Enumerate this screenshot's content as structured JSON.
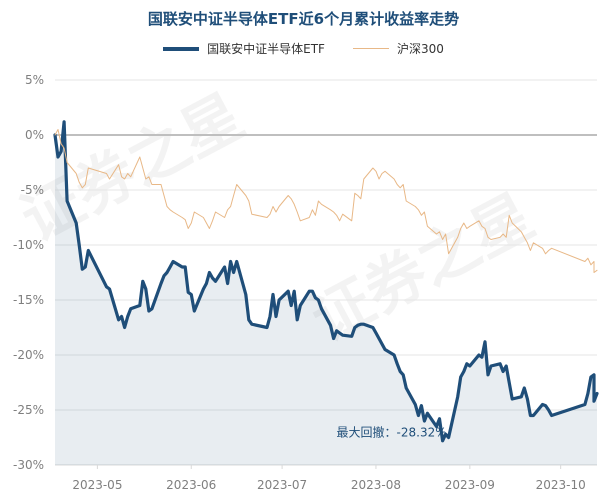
{
  "watermark": "证券之星",
  "chart_data": {
    "type": "line",
    "title": "国联安中证半导体ETF近6个月累计收益率走势",
    "xlabel": "",
    "ylabel": "",
    "ylim": [
      -30,
      5
    ],
    "yticks": [
      5,
      0,
      -5,
      -10,
      -15,
      -20,
      -25,
      -30
    ],
    "ytick_labels": [
      "5%",
      "0%",
      "-5%",
      "-10%",
      "-15%",
      "-20%",
      "-25%",
      "-30%"
    ],
    "x_domain": [
      "2023-04-17",
      "2023-10-13"
    ],
    "xticks": [
      "2023-05-01",
      "2023-06-01",
      "2023-07-01",
      "2023-08-01",
      "2023-09-01",
      "2023-10-01"
    ],
    "xtick_labels": [
      "2023-05",
      "2023-06",
      "2023-07",
      "2023-08",
      "2023-09",
      "2023-10"
    ],
    "grid": true,
    "legend": "top-center",
    "series": [
      {
        "name": "国联安中证半导体ETF",
        "color": "#1f4e79",
        "style": "thick-area",
        "points": [
          [
            "2023-04-17",
            0.0
          ],
          [
            "2023-04-18",
            -2.0
          ],
          [
            "2023-04-19",
            -1.5
          ],
          [
            "2023-04-20",
            1.2
          ],
          [
            "2023-04-21",
            -6.0
          ],
          [
            "2023-04-24",
            -8.0
          ],
          [
            "2023-04-25",
            -10.0
          ],
          [
            "2023-04-26",
            -12.2
          ],
          [
            "2023-04-27",
            -12.0
          ],
          [
            "2023-04-28",
            -10.5
          ],
          [
            "2023-05-04",
            -13.8
          ],
          [
            "2023-05-05",
            -14.0
          ],
          [
            "2023-05-08",
            -16.8
          ],
          [
            "2023-05-09",
            -16.5
          ],
          [
            "2023-05-10",
            -17.5
          ],
          [
            "2023-05-11",
            -16.5
          ],
          [
            "2023-05-12",
            -15.8
          ],
          [
            "2023-05-15",
            -15.5
          ],
          [
            "2023-05-16",
            -13.3
          ],
          [
            "2023-05-17",
            -14.0
          ],
          [
            "2023-05-18",
            -16.0
          ],
          [
            "2023-05-19",
            -15.8
          ],
          [
            "2023-05-22",
            -13.5
          ],
          [
            "2023-05-23",
            -12.8
          ],
          [
            "2023-05-24",
            -12.5
          ],
          [
            "2023-05-25",
            -12.0
          ],
          [
            "2023-05-26",
            -11.5
          ],
          [
            "2023-05-29",
            -12.0
          ],
          [
            "2023-05-30",
            -12.0
          ],
          [
            "2023-05-31",
            -14.3
          ],
          [
            "2023-06-01",
            -14.5
          ],
          [
            "2023-06-02",
            -16.0
          ],
          [
            "2023-06-05",
            -14.0
          ],
          [
            "2023-06-06",
            -13.5
          ],
          [
            "2023-06-07",
            -12.5
          ],
          [
            "2023-06-08",
            -13.0
          ],
          [
            "2023-06-09",
            -13.3
          ],
          [
            "2023-06-12",
            -12.0
          ],
          [
            "2023-06-13",
            -13.5
          ],
          [
            "2023-06-14",
            -11.5
          ],
          [
            "2023-06-15",
            -12.5
          ],
          [
            "2023-06-16",
            -11.5
          ],
          [
            "2023-06-19",
            -14.5
          ],
          [
            "2023-06-20",
            -16.8
          ],
          [
            "2023-06-21",
            -17.2
          ],
          [
            "2023-06-26",
            -17.5
          ],
          [
            "2023-06-27",
            -16.5
          ],
          [
            "2023-06-28",
            -14.5
          ],
          [
            "2023-06-29",
            -16.5
          ],
          [
            "2023-06-30",
            -15.0
          ],
          [
            "2023-07-03",
            -14.2
          ],
          [
            "2023-07-04",
            -15.5
          ],
          [
            "2023-07-05",
            -14.2
          ],
          [
            "2023-07-06",
            -16.8
          ],
          [
            "2023-07-07",
            -15.5
          ],
          [
            "2023-07-10",
            -14.2
          ],
          [
            "2023-07-11",
            -14.2
          ],
          [
            "2023-07-12",
            -14.8
          ],
          [
            "2023-07-13",
            -15.0
          ],
          [
            "2023-07-14",
            -15.8
          ],
          [
            "2023-07-17",
            -17.3
          ],
          [
            "2023-07-18",
            -18.5
          ],
          [
            "2023-07-19",
            -17.8
          ],
          [
            "2023-07-20",
            -18.0
          ],
          [
            "2023-07-21",
            -18.2
          ],
          [
            "2023-07-24",
            -18.3
          ],
          [
            "2023-07-25",
            -17.5
          ],
          [
            "2023-07-26",
            -17.3
          ],
          [
            "2023-07-27",
            -17.2
          ],
          [
            "2023-07-28",
            -17.2
          ],
          [
            "2023-07-31",
            -17.5
          ],
          [
            "2023-08-01",
            -18.0
          ],
          [
            "2023-08-02",
            -18.5
          ],
          [
            "2023-08-03",
            -19.0
          ],
          [
            "2023-08-04",
            -19.5
          ],
          [
            "2023-08-07",
            -20.0
          ],
          [
            "2023-08-08",
            -20.8
          ],
          [
            "2023-08-09",
            -21.5
          ],
          [
            "2023-08-10",
            -21.8
          ],
          [
            "2023-08-11",
            -23.0
          ],
          [
            "2023-08-14",
            -24.5
          ],
          [
            "2023-08-15",
            -25.5
          ],
          [
            "2023-08-16",
            -24.6
          ],
          [
            "2023-08-17",
            -26.0
          ],
          [
            "2023-08-18",
            -25.3
          ],
          [
            "2023-08-21",
            -26.5
          ],
          [
            "2023-08-22",
            -25.8
          ],
          [
            "2023-08-23",
            -27.8
          ],
          [
            "2023-08-24",
            -27.2
          ],
          [
            "2023-08-25",
            -27.5
          ],
          [
            "2023-08-28",
            -23.8
          ],
          [
            "2023-08-29",
            -22.0
          ],
          [
            "2023-08-30",
            -21.5
          ],
          [
            "2023-08-31",
            -20.8
          ],
          [
            "2023-09-01",
            -21.0
          ],
          [
            "2023-09-04",
            -20.0
          ],
          [
            "2023-09-05",
            -20.2
          ],
          [
            "2023-09-06",
            -18.8
          ],
          [
            "2023-09-07",
            -21.8
          ],
          [
            "2023-09-08",
            -21.0
          ],
          [
            "2023-09-11",
            -20.8
          ],
          [
            "2023-09-12",
            -21.5
          ],
          [
            "2023-09-13",
            -21.0
          ],
          [
            "2023-09-14",
            -22.5
          ],
          [
            "2023-09-15",
            -24.0
          ],
          [
            "2023-09-18",
            -23.8
          ],
          [
            "2023-09-19",
            -23.0
          ],
          [
            "2023-09-20",
            -24.0
          ],
          [
            "2023-09-21",
            -25.5
          ],
          [
            "2023-09-22",
            -25.5
          ],
          [
            "2023-09-25",
            -24.5
          ],
          [
            "2023-09-26",
            -24.6
          ],
          [
            "2023-09-27",
            -25.0
          ],
          [
            "2023-09-28",
            -25.5
          ],
          [
            "2023-10-09",
            -24.5
          ],
          [
            "2023-10-10",
            -23.5
          ],
          [
            "2023-10-11",
            -22.0
          ],
          [
            "2023-10-12",
            -21.8
          ],
          [
            "2023-10-12",
            -24.2
          ],
          [
            "2023-10-13",
            -23.5
          ]
        ]
      },
      {
        "name": "沪深300",
        "color": "#e8b887",
        "style": "thin",
        "points": [
          [
            "2023-04-17",
            0.0
          ],
          [
            "2023-04-18",
            0.5
          ],
          [
            "2023-04-19",
            -0.8
          ],
          [
            "2023-04-20",
            -1.2
          ],
          [
            "2023-04-21",
            -2.5
          ],
          [
            "2023-04-24",
            -3.5
          ],
          [
            "2023-04-25",
            -4.3
          ],
          [
            "2023-04-26",
            -4.8
          ],
          [
            "2023-04-27",
            -4.5
          ],
          [
            "2023-04-28",
            -3.0
          ],
          [
            "2023-05-04",
            -3.5
          ],
          [
            "2023-05-05",
            -4.0
          ],
          [
            "2023-05-08",
            -2.7
          ],
          [
            "2023-05-09",
            -3.8
          ],
          [
            "2023-05-10",
            -4.0
          ],
          [
            "2023-05-11",
            -3.5
          ],
          [
            "2023-05-12",
            -3.8
          ],
          [
            "2023-05-15",
            -2.0
          ],
          [
            "2023-05-16",
            -3.0
          ],
          [
            "2023-05-17",
            -4.0
          ],
          [
            "2023-05-18",
            -3.8
          ],
          [
            "2023-05-19",
            -4.5
          ],
          [
            "2023-05-22",
            -4.5
          ],
          [
            "2023-05-23",
            -5.5
          ],
          [
            "2023-05-24",
            -6.5
          ],
          [
            "2023-05-25",
            -6.8
          ],
          [
            "2023-05-26",
            -7.0
          ],
          [
            "2023-05-29",
            -7.5
          ],
          [
            "2023-05-30",
            -7.7
          ],
          [
            "2023-05-31",
            -8.5
          ],
          [
            "2023-06-01",
            -8.0
          ],
          [
            "2023-06-02",
            -7.0
          ],
          [
            "2023-06-05",
            -7.5
          ],
          [
            "2023-06-06",
            -8.0
          ],
          [
            "2023-06-07",
            -8.5
          ],
          [
            "2023-06-08",
            -7.8
          ],
          [
            "2023-06-09",
            -7.0
          ],
          [
            "2023-06-12",
            -7.5
          ],
          [
            "2023-06-13",
            -6.8
          ],
          [
            "2023-06-14",
            -6.5
          ],
          [
            "2023-06-15",
            -5.5
          ],
          [
            "2023-06-16",
            -4.5
          ],
          [
            "2023-06-19",
            -5.5
          ],
          [
            "2023-06-20",
            -6.0
          ],
          [
            "2023-06-21",
            -7.2
          ],
          [
            "2023-06-26",
            -7.5
          ],
          [
            "2023-06-27",
            -7.2
          ],
          [
            "2023-06-28",
            -6.5
          ],
          [
            "2023-06-29",
            -7.0
          ],
          [
            "2023-06-30",
            -6.5
          ],
          [
            "2023-07-03",
            -5.5
          ],
          [
            "2023-07-04",
            -5.8
          ],
          [
            "2023-07-05",
            -6.3
          ],
          [
            "2023-07-06",
            -7.0
          ],
          [
            "2023-07-07",
            -7.8
          ],
          [
            "2023-07-10",
            -7.5
          ],
          [
            "2023-07-11",
            -6.8
          ],
          [
            "2023-07-12",
            -7.3
          ],
          [
            "2023-07-13",
            -6.0
          ],
          [
            "2023-07-14",
            -6.3
          ],
          [
            "2023-07-17",
            -6.8
          ],
          [
            "2023-07-18",
            -7.0
          ],
          [
            "2023-07-19",
            -7.3
          ],
          [
            "2023-07-20",
            -7.8
          ],
          [
            "2023-07-21",
            -7.2
          ],
          [
            "2023-07-24",
            -7.8
          ],
          [
            "2023-07-25",
            -5.3
          ],
          [
            "2023-07-26",
            -5.5
          ],
          [
            "2023-07-27",
            -5.8
          ],
          [
            "2023-07-28",
            -4.0
          ],
          [
            "2023-07-31",
            -3.0
          ],
          [
            "2023-08-01",
            -3.3
          ],
          [
            "2023-08-02",
            -4.0
          ],
          [
            "2023-08-03",
            -3.5
          ],
          [
            "2023-08-04",
            -3.3
          ],
          [
            "2023-08-07",
            -4.0
          ],
          [
            "2023-08-08",
            -4.5
          ],
          [
            "2023-08-09",
            -4.8
          ],
          [
            "2023-08-10",
            -4.5
          ],
          [
            "2023-08-11",
            -6.0
          ],
          [
            "2023-08-14",
            -6.5
          ],
          [
            "2023-08-15",
            -6.8
          ],
          [
            "2023-08-16",
            -7.3
          ],
          [
            "2023-08-17",
            -7.0
          ],
          [
            "2023-08-18",
            -8.3
          ],
          [
            "2023-08-21",
            -9.0
          ],
          [
            "2023-08-22",
            -8.8
          ],
          [
            "2023-08-23",
            -9.5
          ],
          [
            "2023-08-24",
            -9.0
          ],
          [
            "2023-08-25",
            -10.8
          ],
          [
            "2023-08-28",
            -9.3
          ],
          [
            "2023-08-29",
            -8.5
          ],
          [
            "2023-08-30",
            -8.0
          ],
          [
            "2023-08-31",
            -8.5
          ],
          [
            "2023-09-01",
            -8.3
          ],
          [
            "2023-09-04",
            -7.8
          ],
          [
            "2023-09-05",
            -8.3
          ],
          [
            "2023-09-06",
            -8.5
          ],
          [
            "2023-09-07",
            -9.3
          ],
          [
            "2023-09-08",
            -9.5
          ],
          [
            "2023-09-11",
            -9.3
          ],
          [
            "2023-09-12",
            -9.0
          ],
          [
            "2023-09-13",
            -9.3
          ],
          [
            "2023-09-14",
            -7.3
          ],
          [
            "2023-09-15",
            -8.0
          ],
          [
            "2023-09-18",
            -8.8
          ],
          [
            "2023-09-19",
            -9.3
          ],
          [
            "2023-09-20",
            -9.8
          ],
          [
            "2023-09-21",
            -10.5
          ],
          [
            "2023-09-22",
            -9.8
          ],
          [
            "2023-09-25",
            -10.3
          ],
          [
            "2023-09-26",
            -10.8
          ],
          [
            "2023-09-27",
            -10.5
          ],
          [
            "2023-09-28",
            -10.3
          ],
          [
            "2023-10-09",
            -11.5
          ],
          [
            "2023-10-10",
            -11.2
          ],
          [
            "2023-10-11",
            -11.8
          ],
          [
            "2023-10-12",
            -11.5
          ],
          [
            "2023-10-12",
            -12.5
          ],
          [
            "2023-10-13",
            -12.3
          ]
        ]
      }
    ],
    "annotations": [
      {
        "text": "最大回撤：-28.32%",
        "x": "2023-08-25",
        "y": -28.32
      }
    ]
  }
}
